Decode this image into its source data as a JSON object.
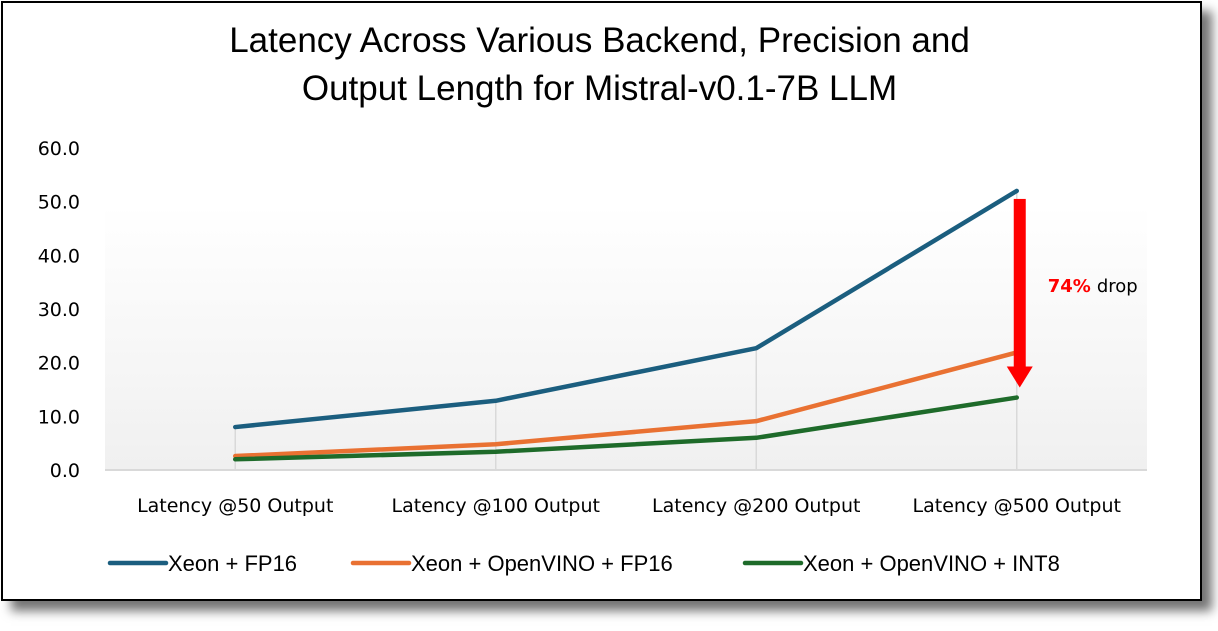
{
  "chart_data": {
    "type": "line",
    "title_lines": [
      "Latency Across Various Backend, Precision and",
      "Output Length for Mistral-v0.1-7B LLM"
    ],
    "xlabel": "",
    "ylabel": "",
    "categories": [
      "Latency @50 Output",
      "Latency @100 Output",
      "Latency @200 Output",
      "Latency @500 Output"
    ],
    "ylim": [
      0,
      60
    ],
    "yticks": [
      "0.0",
      "10.0",
      "20.0",
      "30.0",
      "40.0",
      "50.0",
      "60.0"
    ],
    "grid": "vertical category lines",
    "legend_position": "bottom",
    "series": [
      {
        "name": "Xeon + FP16",
        "color": "#1b5e7f",
        "values": [
          8.0,
          12.9,
          22.7,
          52.0
        ]
      },
      {
        "name": "Xeon + OpenVINO + FP16",
        "color": "#e97132",
        "values": [
          2.6,
          4.8,
          9.1,
          21.9
        ]
      },
      {
        "name": "Xeon + OpenVINO + INT8",
        "color": "#1e6b2a",
        "values": [
          2.0,
          3.4,
          6.0,
          13.5
        ]
      }
    ],
    "annotation": {
      "percent": "74%",
      "text": "drop",
      "color": "#ff0000",
      "from_value": 52.0,
      "to_value": 13.5,
      "category": "Latency @500 Output"
    }
  }
}
